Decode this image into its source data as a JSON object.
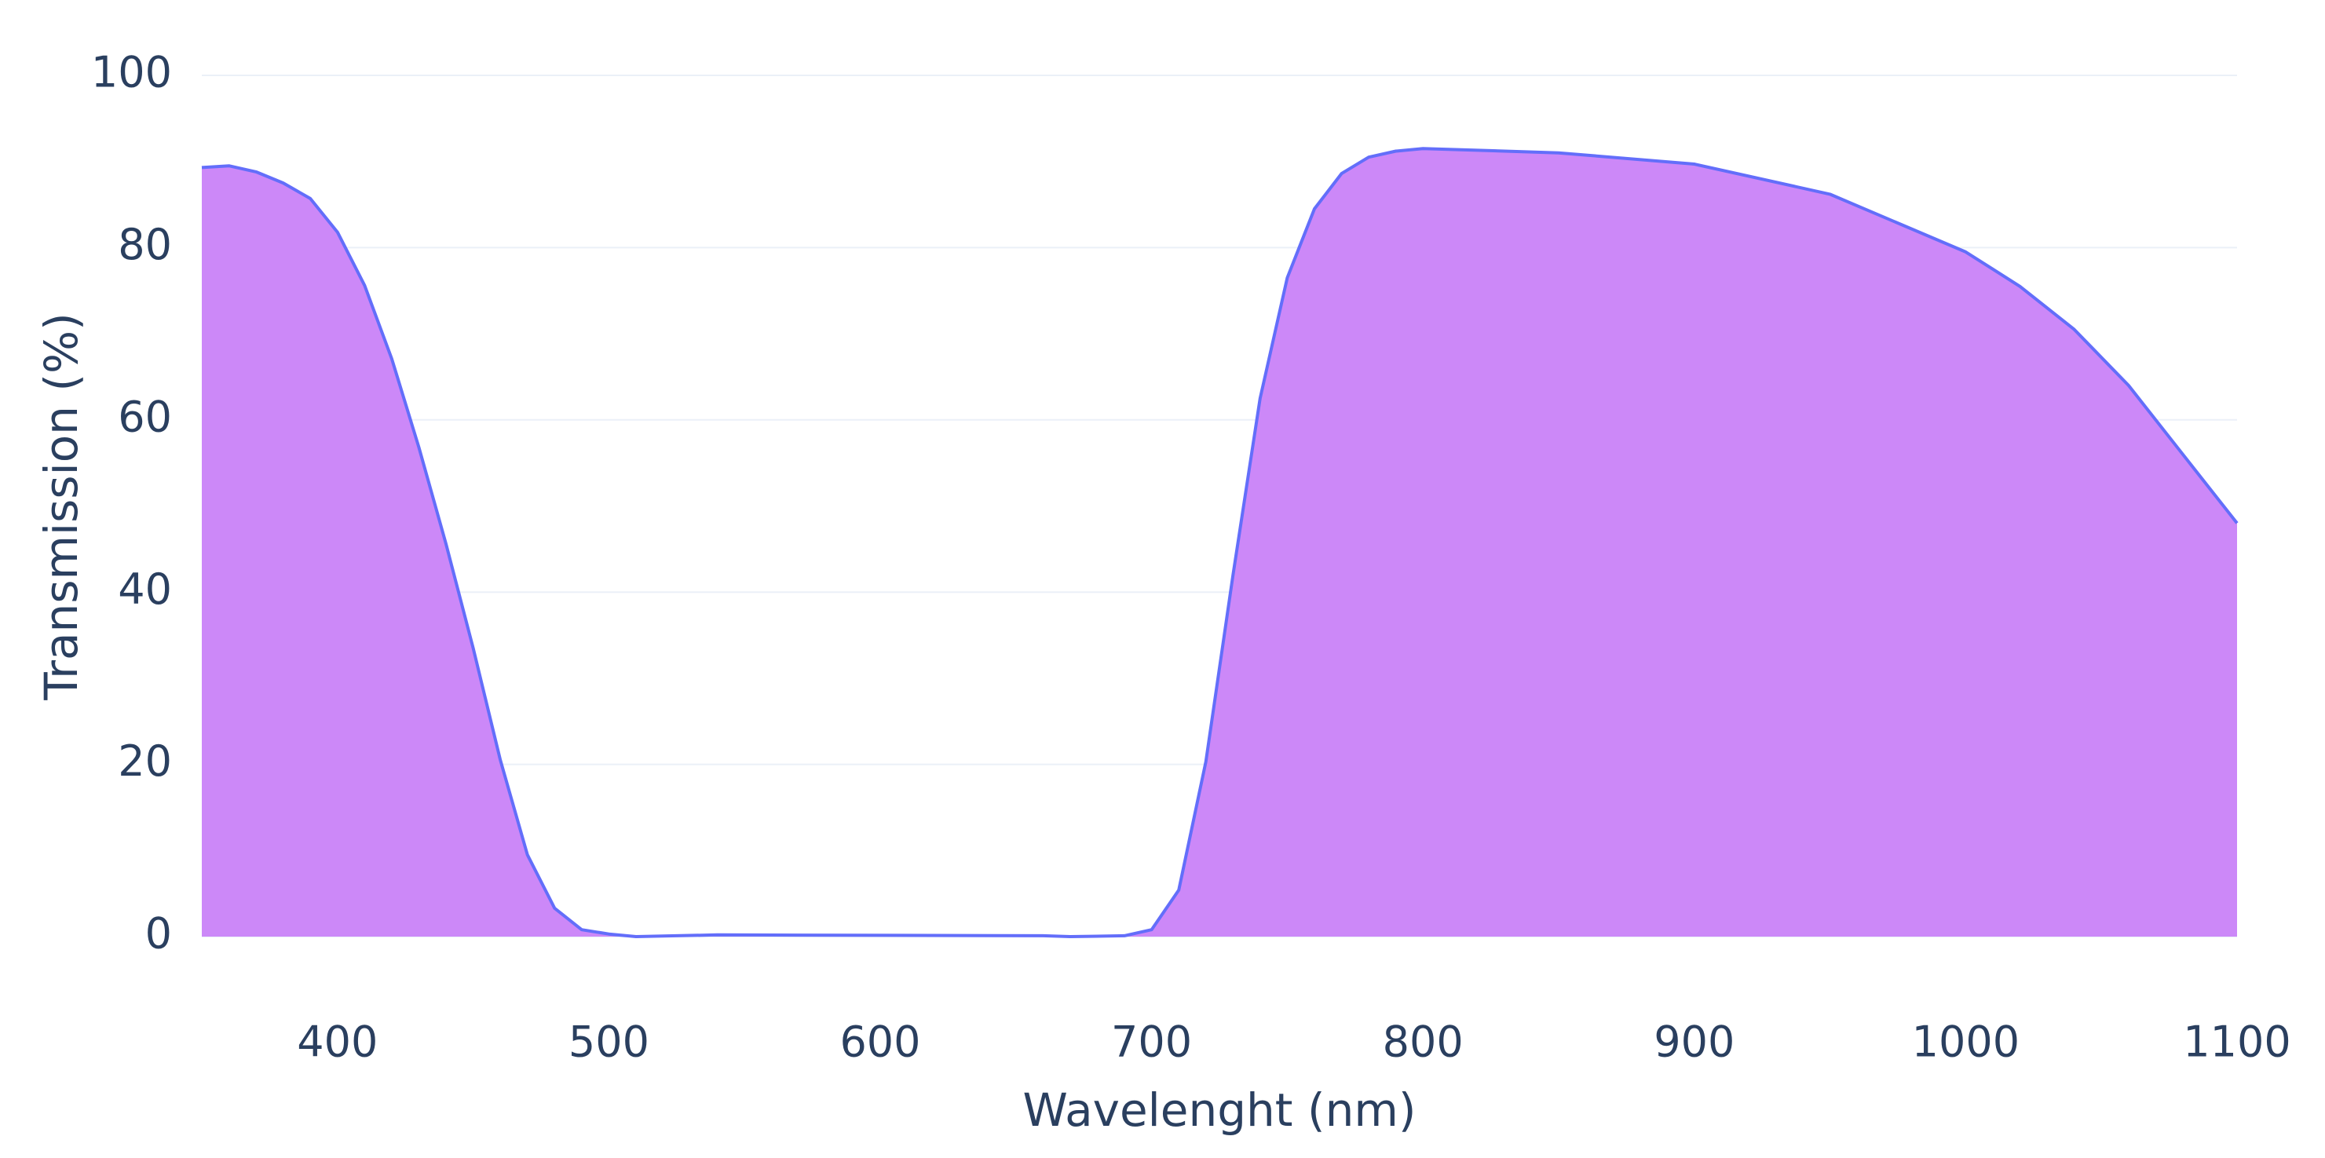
{
  "chart_data": {
    "type": "area",
    "x_label": "Wavelenght (nm)",
    "y_label": "Transmission (%)",
    "x": [
      350,
      360,
      370,
      380,
      390,
      400,
      410,
      420,
      430,
      440,
      450,
      460,
      470,
      480,
      490,
      500,
      510,
      540,
      660,
      670,
      690,
      700,
      710,
      720,
      730,
      740,
      750,
      760,
      770,
      780,
      790,
      800,
      850,
      900,
      950,
      1000,
      1020,
      1040,
      1060,
      1080,
      1100
    ],
    "values": [
      89.3,
      89.5,
      88.8,
      87.5,
      85.7,
      81.8,
      75.6,
      67.1,
      56.8,
      45.6,
      33.5,
      20.5,
      9.5,
      3.3,
      0.8,
      0.3,
      0,
      0.2,
      0.1,
      0,
      0.1,
      0.8,
      5.4,
      20.3,
      42,
      62.5,
      76.5,
      84.5,
      88.6,
      90.5,
      91.2,
      91.5,
      91,
      89.7,
      86.2,
      79.5,
      75.5,
      70.5,
      64,
      56,
      48
    ],
    "fill_color": "#cc88f8",
    "line_color": "#636efa",
    "xlim": [
      350,
      1100
    ],
    "xticks": [
      400,
      500,
      600,
      700,
      800,
      900,
      1000,
      1100
    ],
    "ylim": [
      0,
      100
    ],
    "yticks": [
      0,
      20,
      40,
      60,
      80,
      100
    ],
    "grid": true
  }
}
